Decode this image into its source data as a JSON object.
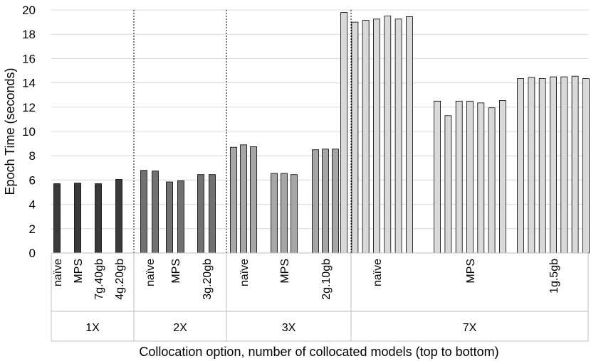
{
  "chart_data": {
    "type": "bar",
    "ylabel": "Epoch Time (seconds)",
    "xlabel": "Collocation option, number of collocated models (top to bottom)",
    "ylim": [
      0,
      20
    ],
    "yticks": [
      0,
      2,
      4,
      6,
      8,
      10,
      12,
      14,
      16,
      18,
      20
    ],
    "grid": true,
    "groups": [
      {
        "label": "1X",
        "color": "#3a3a3a",
        "categories": [
          {
            "label": "naïve",
            "values": [
              5.7
            ]
          },
          {
            "label": "MPS",
            "values": [
              5.75
            ]
          },
          {
            "label": "7g.40gb",
            "values": [
              5.7
            ]
          },
          {
            "label": "4g.20gb",
            "values": [
              6.05
            ]
          }
        ]
      },
      {
        "label": "2X",
        "color": "#707070",
        "categories": [
          {
            "label": "naïve",
            "values": [
              6.8,
              6.75
            ]
          },
          {
            "label": "MPS",
            "values": [
              5.85,
              5.95
            ]
          },
          {
            "label": "3g.20gb",
            "values": [
              6.45,
              6.45
            ]
          }
        ]
      },
      {
        "label": "3X",
        "color": "#a6a6a6",
        "categories": [
          {
            "label": "naïve",
            "values": [
              8.7,
              8.9,
              8.75
            ]
          },
          {
            "label": "MPS",
            "values": [
              6.55,
              6.55,
              6.45
            ]
          },
          {
            "label": "2g.10gb",
            "values": [
              8.5,
              8.55,
              8.55
            ]
          }
        ]
      },
      {
        "label": "7X",
        "color": "#d9d9d9",
        "categories": [
          {
            "label": "naïve",
            "values": [
              19.8,
              19.0,
              19.15,
              19.25,
              19.5,
              19.25,
              19.45
            ]
          },
          {
            "label": "MPS",
            "values": [
              12.5,
              11.3,
              12.5,
              12.5,
              12.35,
              11.95,
              12.55
            ]
          },
          {
            "label": "1g.5gb",
            "values": [
              14.35,
              14.45,
              14.35,
              14.5,
              14.5,
              14.55,
              14.35
            ]
          }
        ]
      }
    ]
  }
}
